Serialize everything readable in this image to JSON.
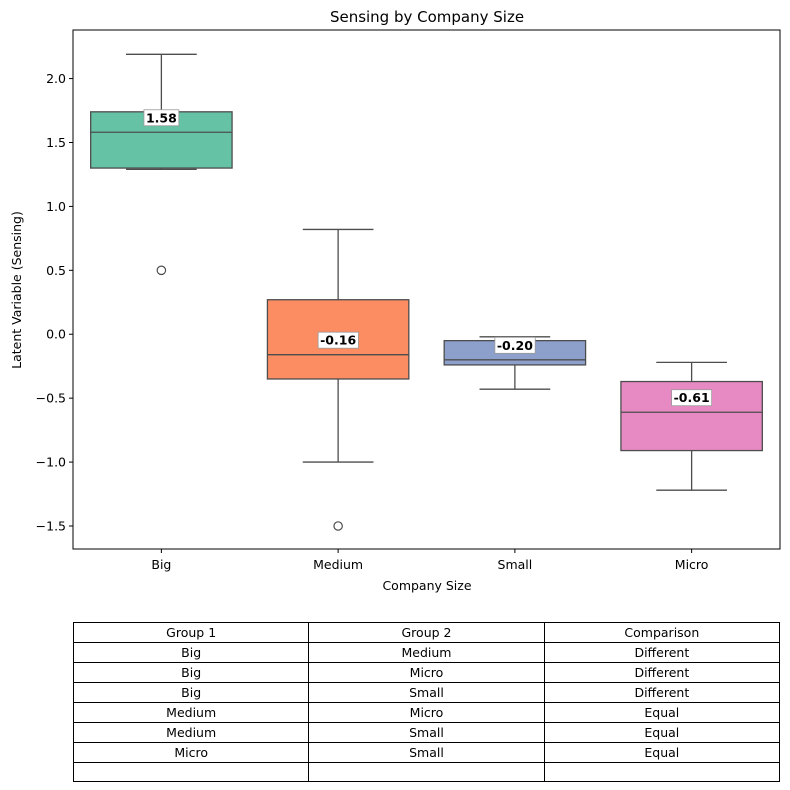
{
  "chart_data": {
    "type": "box",
    "title": "Sensing by Company Size",
    "xlabel": "Company Size",
    "ylabel": "Latent Variable (Sensing)",
    "ylim": [
      -1.68,
      2.38
    ],
    "yticks": [
      -1.5,
      -1.0,
      -0.5,
      0.0,
      0.5,
      1.0,
      1.5,
      2.0
    ],
    "ytick_labels": [
      "−1.5",
      "−1.0",
      "−0.5",
      "0.0",
      "0.5",
      "1.0",
      "1.5",
      "2.0"
    ],
    "grid": false,
    "categories": [
      "Big",
      "Medium",
      "Small",
      "Micro"
    ],
    "boxes": [
      {
        "category": "Big",
        "color": "#66c2a5",
        "whisker_low": 1.29,
        "q1": 1.3,
        "median": 1.58,
        "q3": 1.74,
        "whisker_high": 2.19,
        "outliers": [
          0.5
        ],
        "median_label": "1.58"
      },
      {
        "category": "Medium",
        "color": "#fc8d62",
        "whisker_low": -1.0,
        "q1": -0.35,
        "median": -0.16,
        "q3": 0.27,
        "whisker_high": 0.82,
        "outliers": [
          -1.5
        ],
        "median_label": "-0.16"
      },
      {
        "category": "Small",
        "color": "#8da0cb",
        "whisker_low": -0.43,
        "q1": -0.24,
        "median": -0.2,
        "q3": -0.05,
        "whisker_high": -0.02,
        "outliers": [],
        "median_label": "-0.20"
      },
      {
        "category": "Micro",
        "color": "#e78ac3",
        "whisker_low": -1.22,
        "q1": -0.91,
        "median": -0.61,
        "q3": -0.37,
        "whisker_high": -0.22,
        "outliers": [],
        "median_label": "-0.61"
      }
    ]
  },
  "table": {
    "headers": [
      "Group 1",
      "Group 2",
      "Comparison"
    ],
    "rows": [
      [
        "Big",
        "Medium",
        "Different"
      ],
      [
        "Big",
        "Micro",
        "Different"
      ],
      [
        "Big",
        "Small",
        "Different"
      ],
      [
        "Medium",
        "Micro",
        "Equal"
      ],
      [
        "Medium",
        "Small",
        "Equal"
      ],
      [
        "Micro",
        "Small",
        "Equal"
      ]
    ]
  }
}
